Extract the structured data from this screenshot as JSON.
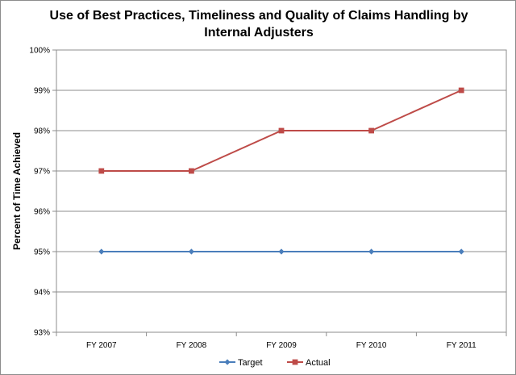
{
  "chart_data": {
    "type": "line",
    "title": "Use of Best Practices, Timeliness and Quality of Claims Handling by Internal Adjusters",
    "xlabel": "",
    "ylabel": "Percent of Time Achieved",
    "categories": [
      "FY 2007",
      "FY 2008",
      "FY 2009",
      "FY 2010",
      "FY 2011"
    ],
    "ylim": [
      93,
      100
    ],
    "yticks": [
      "93%",
      "94%",
      "95%",
      "96%",
      "97%",
      "98%",
      "99%",
      "100%"
    ],
    "grid": true,
    "legend_position": "bottom",
    "series": [
      {
        "name": "Target",
        "values": [
          95,
          95,
          95,
          95,
          95
        ],
        "color": "#4a7ebb",
        "marker": "diamond"
      },
      {
        "name": "Actual",
        "values": [
          97,
          97,
          98,
          98,
          99
        ],
        "color": "#be4b48",
        "marker": "square"
      }
    ]
  }
}
